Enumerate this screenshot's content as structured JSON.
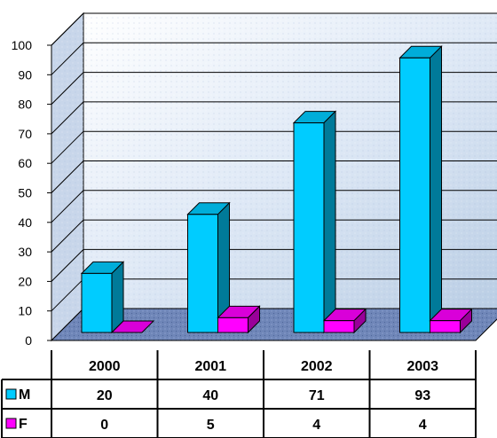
{
  "chart_data": {
    "type": "bar",
    "categories": [
      "2000",
      "2001",
      "2002",
      "2003"
    ],
    "series": [
      {
        "name": "M",
        "values": [
          20,
          40,
          71,
          93
        ],
        "color": "#00ccff"
      },
      {
        "name": "F",
        "values": [
          0,
          5,
          4,
          4
        ],
        "color": "#ff00ff"
      }
    ],
    "ylim": [
      0,
      100
    ],
    "yticks": [
      "0",
      "10",
      "20",
      "30",
      "40",
      "50",
      "60",
      "70",
      "80",
      "90",
      "100"
    ],
    "grid": true,
    "three_d": true,
    "data_table": true,
    "legend_placement": "data-table-left"
  }
}
